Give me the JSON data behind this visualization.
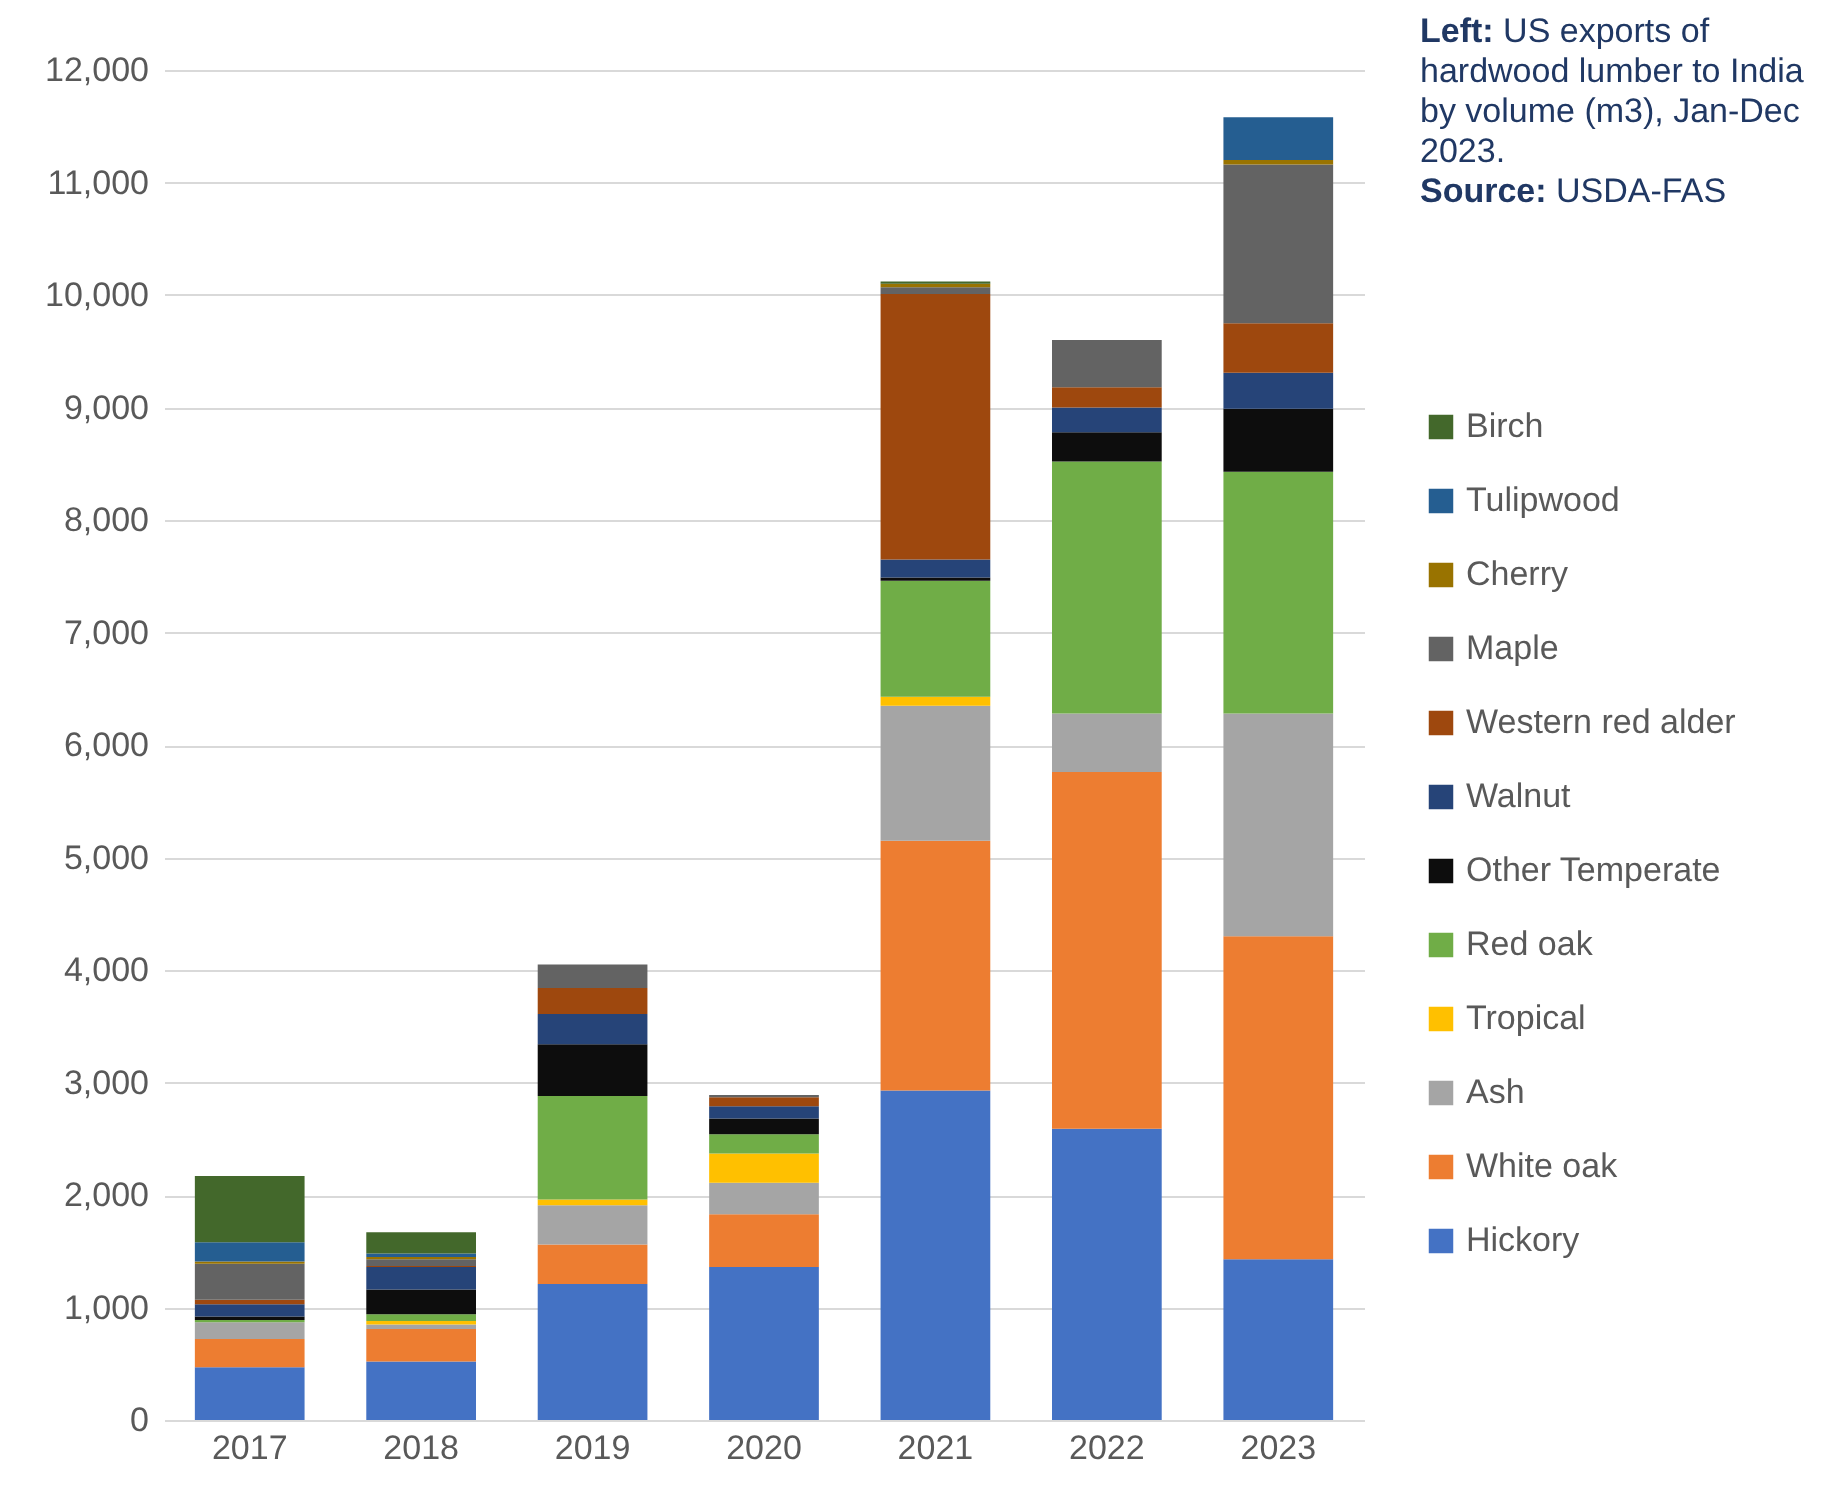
{
  "chart_data": {
    "type": "bar",
    "stacked": true,
    "categories": [
      "2017",
      "2018",
      "2019",
      "2020",
      "2021",
      "2022",
      "2023"
    ],
    "series": [
      {
        "name": "Hickory",
        "color": "#4472c4",
        "values": [
          470,
          520,
          1210,
          1360,
          2930,
          2590,
          1430
        ]
      },
      {
        "name": "White oak",
        "color": "#ed7d31",
        "values": [
          250,
          290,
          350,
          470,
          2220,
          3170,
          2870
        ]
      },
      {
        "name": "Ash",
        "color": "#a5a5a5",
        "values": [
          150,
          40,
          350,
          280,
          1200,
          520,
          1980
        ]
      },
      {
        "name": "Tropical",
        "color": "#ffc000",
        "values": [
          null,
          30,
          50,
          260,
          80,
          null,
          null
        ]
      },
      {
        "name": "Red oak",
        "color": "#70ad47",
        "values": [
          20,
          60,
          920,
          170,
          1030,
          2240,
          2150
        ]
      },
      {
        "name": "Other Temperate",
        "color": "#0d0d0d",
        "values": [
          30,
          220,
          460,
          140,
          30,
          260,
          560
        ]
      },
      {
        "name": "Walnut",
        "color": "#264478",
        "values": [
          110,
          200,
          270,
          110,
          160,
          220,
          320
        ]
      },
      {
        "name": "Western red alder",
        "color": "#9e480e",
        "values": [
          40,
          10,
          230,
          80,
          2360,
          180,
          440
        ]
      },
      {
        "name": "Maple",
        "color": "#636363",
        "values": [
          320,
          60,
          210,
          20,
          60,
          420,
          1410
        ]
      },
      {
        "name": "Cherry",
        "color": "#997300",
        "values": [
          20,
          20,
          null,
          null,
          30,
          null,
          40
        ]
      },
      {
        "name": "Tulipwood",
        "color": "#255e91",
        "values": [
          170,
          30,
          null,
          null,
          null,
          null,
          380
        ]
      },
      {
        "name": "Birch",
        "color": "#43682b",
        "values": [
          590,
          190,
          null,
          null,
          20,
          null,
          null
        ]
      }
    ],
    "ylim": [
      0,
      12000
    ],
    "yticks": [
      0,
      {
        "value": 1000,
        "label": "1,000"
      },
      {
        "value": 2000,
        "label": "2,000"
      },
      {
        "value": 3000,
        "label": "3,000"
      },
      {
        "value": 4000,
        "label": "4,000"
      },
      {
        "value": 5000,
        "label": "5,000"
      },
      {
        "value": 6000,
        "label": "6,000"
      },
      {
        "value": 7000,
        "label": "7,000"
      },
      {
        "value": 8000,
        "label": "8,000"
      },
      {
        "value": 9000,
        "label": "9,000"
      },
      {
        "value": 10000,
        "label": "10,000"
      },
      {
        "value": 11000,
        "label": "11,000"
      },
      {
        "value": 12000,
        "label": "12,000"
      }
    ],
    "grid": "y",
    "legend": "right",
    "annotations": [
      "Left: US exports of hardwood lumber to India by volume (m3), Jan-Dec 2023.",
      "Source: USDA-FAS"
    ]
  }
}
